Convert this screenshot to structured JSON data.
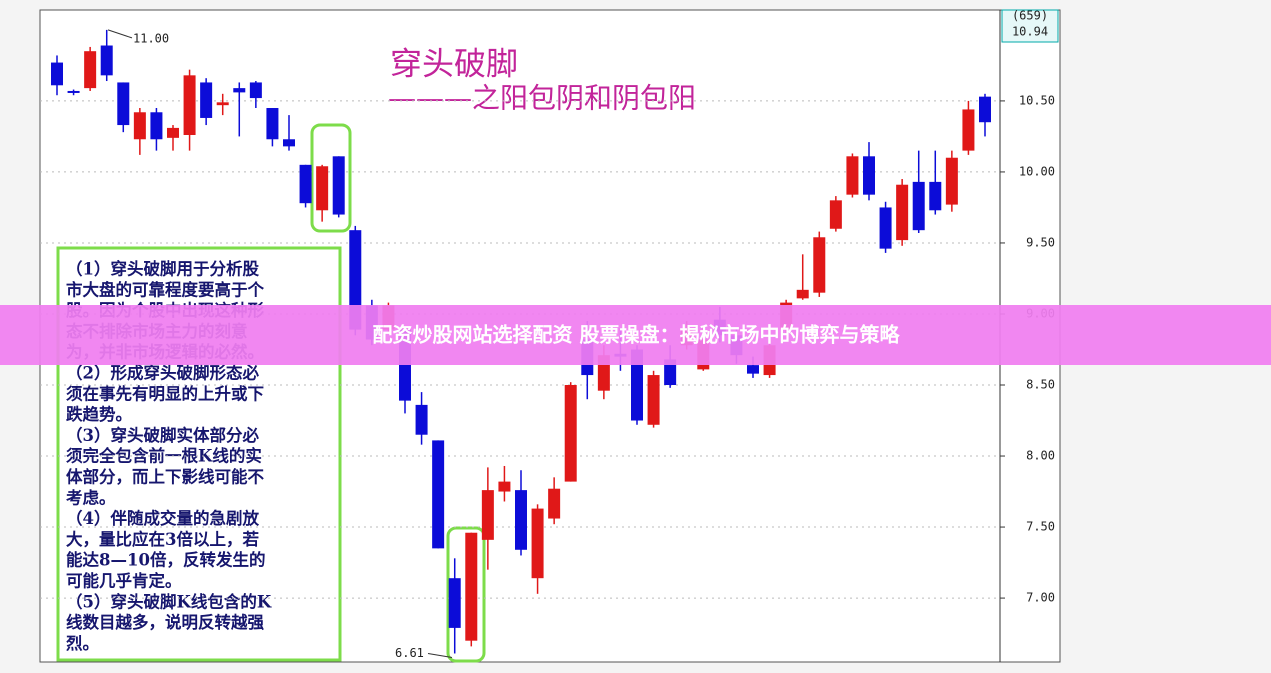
{
  "chart_data": {
    "type": "candlestick",
    "title": "穿头破脚",
    "subtitle": "———之阳包阴和阴包阳",
    "up_color": "#e01818",
    "down_color": "#0c0cd8",
    "series": [
      {
        "name": "open",
        "values": [
          10.77,
          10.57,
          10.59,
          10.89,
          10.63,
          10.23,
          10.42,
          10.24,
          10.26,
          10.63,
          10.47,
          10.59,
          10.63,
          10.45,
          10.23,
          10.05,
          9.73,
          10.11,
          9.59,
          9.06,
          8.89,
          8.89,
          8.36,
          8.11,
          7.14,
          6.7,
          7.41,
          7.75,
          7.76,
          7.14,
          7.56,
          7.82,
          8.82,
          8.46,
          8.72,
          8.75,
          8.22,
          8.68,
          8.78,
          8.61,
          8.96,
          8.85,
          8.64,
          8.57,
          8.89,
          9.11,
          9.15,
          9.6,
          9.84,
          10.11,
          9.75,
          9.52,
          9.93,
          9.93,
          9.77,
          10.15,
          10.53
        ]
      },
      {
        "name": "high",
        "values": [
          10.82,
          10.58,
          10.88,
          11.0,
          10.63,
          10.45,
          10.45,
          10.33,
          10.72,
          10.66,
          10.55,
          10.63,
          10.64,
          10.45,
          10.4,
          10.05,
          10.05,
          10.11,
          9.62,
          9.1,
          9.08,
          8.9,
          8.45,
          8.11,
          7.28,
          7.46,
          7.92,
          7.93,
          7.9,
          7.66,
          7.85,
          8.52,
          8.95,
          8.78,
          8.9,
          8.78,
          8.6,
          8.78,
          8.95,
          8.92,
          9.05,
          8.9,
          8.7,
          8.9,
          9.1,
          9.42,
          9.58,
          9.83,
          10.13,
          10.21,
          9.79,
          9.95,
          10.15,
          10.15,
          10.15,
          10.5,
          10.55
        ]
      },
      {
        "name": "low",
        "values": [
          10.54,
          10.54,
          10.57,
          10.64,
          10.28,
          10.12,
          10.15,
          10.15,
          10.15,
          10.33,
          10.4,
          10.25,
          10.45,
          10.18,
          10.15,
          9.75,
          9.65,
          9.68,
          8.85,
          8.78,
          8.86,
          8.3,
          8.08,
          7.35,
          6.61,
          6.66,
          7.2,
          7.68,
          7.3,
          7.03,
          7.52,
          7.82,
          8.4,
          8.4,
          8.6,
          8.22,
          8.2,
          8.48,
          8.75,
          8.6,
          8.8,
          8.65,
          8.55,
          8.55,
          8.85,
          9.1,
          9.12,
          9.58,
          9.82,
          9.8,
          9.43,
          9.48,
          9.57,
          9.7,
          9.72,
          10.12,
          10.25
        ]
      },
      {
        "name": "close",
        "values": [
          10.61,
          10.56,
          10.85,
          10.68,
          10.33,
          10.42,
          10.23,
          10.31,
          10.68,
          10.38,
          10.49,
          10.56,
          10.52,
          10.23,
          10.18,
          9.78,
          10.04,
          9.7,
          8.89,
          8.82,
          9.06,
          8.39,
          8.15,
          7.35,
          6.79,
          7.46,
          7.76,
          7.82,
          7.34,
          7.63,
          7.77,
          8.5,
          8.57,
          8.71,
          8.7,
          8.25,
          8.57,
          8.5,
          8.89,
          8.82,
          8.85,
          8.71,
          8.58,
          8.78,
          9.08,
          9.17,
          9.54,
          9.8,
          10.11,
          9.84,
          9.46,
          9.91,
          9.59,
          9.73,
          10.1,
          10.44,
          10.35
        ]
      }
    ],
    "ylim": [
      6.55,
      11.14
    ],
    "yticks": [
      {
        "value": 7.0,
        "label": "7.00"
      },
      {
        "value": 7.5,
        "label": "7.50"
      },
      {
        "value": 8.0,
        "label": "8.00"
      },
      {
        "value": 8.5,
        "label": "8.50"
      },
      {
        "value": 9.0,
        "label": "9.00"
      },
      {
        "value": 9.5,
        "label": "9.50"
      },
      {
        "value": 10.0,
        "label": "10.00"
      },
      {
        "value": 10.5,
        "label": "10.50"
      }
    ],
    "grid": true,
    "annotations": [
      {
        "value": 11.0,
        "label": "11.00"
      },
      {
        "value": 6.61,
        "label": "6.61"
      }
    ],
    "price_box": [
      "(659)",
      "10.94"
    ]
  },
  "notes": [
    "（1）穿头破脚用于分析股",
    "市大盘的可靠程度要高于个",
    "股。因为个股中出现这种形",
    "态不排除市场主力的刻意",
    "为，并非市场逻辑的必然。",
    "（2）形成穿头破脚形态必",
    "须在事先有明显的上升或下",
    "跌趋势。",
    "（3）穿头破脚实体部分必",
    "须完全包含前一根K线的实",
    "体部分，而上下影线可能不",
    "考虑。",
    "（4）伴随成交量的急剧放",
    "大，量比应在3倍以上，若",
    "能达8—10倍，反转发生的",
    "可能几乎肯定。",
    "（5）穿头破脚K线包含的K",
    "线数目越多，说明反转越强",
    "烈。"
  ],
  "banner": "配资炒股网站选择配资 股票操盘：揭秘市场中的博弈与策略"
}
